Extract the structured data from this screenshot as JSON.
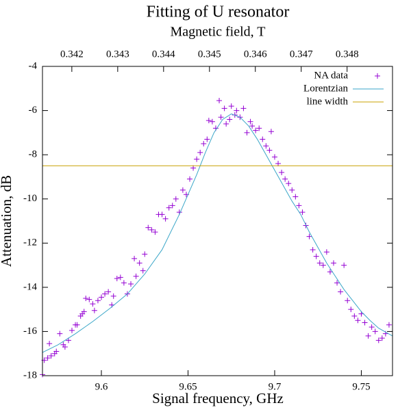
{
  "chart_data": {
    "type": "scatter",
    "title": "Fitting of U resonator",
    "x2label": "Magnetic field, T",
    "xlabel": "Signal frequency, GHz",
    "ylabel": "Attenuation, dB",
    "xlim": [
      9.566,
      9.768
    ],
    "xticks": [
      9.6,
      9.65,
      9.7,
      9.75
    ],
    "x2lim": [
      0.34136,
      0.34899
    ],
    "x2ticks": [
      0.342,
      0.343,
      0.344,
      0.345,
      0.346,
      0.347,
      0.348
    ],
    "ylim": [
      -18,
      -4
    ],
    "yticks": [
      -4,
      -6,
      -8,
      -10,
      -12,
      -14,
      -16,
      -18
    ],
    "legend": "top-right",
    "series": [
      {
        "name": "NA data",
        "kind": "points",
        "color": "#9400d3",
        "x": [
          9.566,
          9.567,
          9.569,
          9.57,
          9.571,
          9.573,
          9.574,
          9.576,
          9.578,
          9.579,
          9.581,
          9.583,
          9.585,
          9.586,
          9.588,
          9.589,
          9.59,
          9.591,
          9.593,
          9.595,
          9.596,
          9.598,
          9.6,
          9.602,
          9.604,
          9.606,
          9.607,
          9.609,
          9.611,
          9.613,
          9.615,
          9.617,
          9.619,
          9.62,
          9.622,
          9.624,
          9.625,
          9.627,
          9.629,
          9.631,
          9.633,
          9.635,
          9.637,
          9.639,
          9.641,
          9.643,
          9.645,
          9.647,
          9.649,
          9.651,
          9.653,
          9.655,
          9.657,
          9.659,
          9.661,
          9.662,
          9.664,
          9.666,
          9.668,
          9.669,
          9.671,
          9.672,
          9.674,
          9.675,
          9.677,
          9.678,
          9.68,
          9.682,
          9.684,
          9.686,
          9.687,
          9.689,
          9.691,
          9.693,
          9.695,
          9.697,
          9.698,
          9.7,
          9.702,
          9.704,
          9.706,
          9.708,
          9.71,
          9.712,
          9.714,
          9.716,
          9.718,
          9.72,
          9.722,
          9.724,
          9.726,
          9.728,
          9.73,
          9.732,
          9.734,
          9.736,
          9.738,
          9.74,
          9.742,
          9.744,
          9.746,
          9.748,
          9.75,
          9.752,
          9.754,
          9.756,
          9.758,
          9.76,
          9.762,
          9.764,
          9.766
        ],
        "values": [
          -17.95,
          -17.3,
          -17.2,
          -16.55,
          -17.1,
          -17.0,
          -16.9,
          -16.1,
          -16.6,
          -16.7,
          -16.4,
          -15.95,
          -15.7,
          -15.7,
          -15.3,
          -15.2,
          -15.1,
          -14.5,
          -14.55,
          -14.75,
          -15.05,
          -14.6,
          -14.45,
          -14.3,
          -14.2,
          -14.8,
          -14.4,
          -13.6,
          -13.55,
          -13.8,
          -14.3,
          -13.85,
          -12.7,
          -13.5,
          -12.9,
          -13.25,
          -12.5,
          -11.3,
          -11.4,
          -11.5,
          -10.7,
          -10.7,
          -10.9,
          -10.4,
          -10.3,
          -10.0,
          -10.6,
          -9.6,
          -9.8,
          -9.1,
          -8.6,
          -8.2,
          -7.9,
          -7.5,
          -7.3,
          -6.45,
          -6.5,
          -6.8,
          -5.55,
          -6.3,
          -5.9,
          -6.6,
          -6.4,
          -5.8,
          -6.2,
          -6.0,
          -6.3,
          -5.9,
          -7.0,
          -6.5,
          -6.7,
          -6.9,
          -6.8,
          -7.3,
          -7.6,
          -7.8,
          -6.95,
          -8.1,
          -8.4,
          -8.8,
          -9.1,
          -9.3,
          -9.6,
          -9.9,
          -10.3,
          -10.6,
          -11.2,
          -11.7,
          -12.3,
          -12.6,
          -12.9,
          -13.0,
          -12.4,
          -13.3,
          -12.9,
          -13.8,
          -14.2,
          -13.0,
          -14.6,
          -15.0,
          -15.3,
          -15.5,
          -15.2,
          -15.6,
          -16.2,
          -15.8,
          -16.0,
          -16.4,
          -16.3,
          -16.1,
          -15.7
        ]
      },
      {
        "name": "Lorentzian",
        "kind": "line",
        "color": "#3aa6c8",
        "x": [
          9.566,
          9.575,
          9.585,
          9.595,
          9.605,
          9.615,
          9.625,
          9.635,
          9.645,
          9.655,
          9.66,
          9.665,
          9.67,
          9.675,
          9.68,
          9.685,
          9.69,
          9.695,
          9.7,
          9.705,
          9.71,
          9.715,
          9.72,
          9.725,
          9.73,
          9.735,
          9.74,
          9.745,
          9.75,
          9.755,
          9.76,
          9.768
        ],
        "values": [
          -16.95,
          -16.6,
          -16.1,
          -15.55,
          -14.95,
          -14.3,
          -13.4,
          -12.3,
          -10.7,
          -8.9,
          -7.9,
          -7.0,
          -6.4,
          -6.15,
          -6.3,
          -6.7,
          -7.3,
          -8.0,
          -8.7,
          -9.4,
          -10.1,
          -10.7,
          -11.5,
          -12.2,
          -12.9,
          -13.5,
          -14.1,
          -14.6,
          -15.1,
          -15.5,
          -15.85,
          -16.2
        ]
      },
      {
        "name": "line width",
        "kind": "hline",
        "color": "#c8a000",
        "values": [
          -8.5
        ]
      }
    ]
  }
}
